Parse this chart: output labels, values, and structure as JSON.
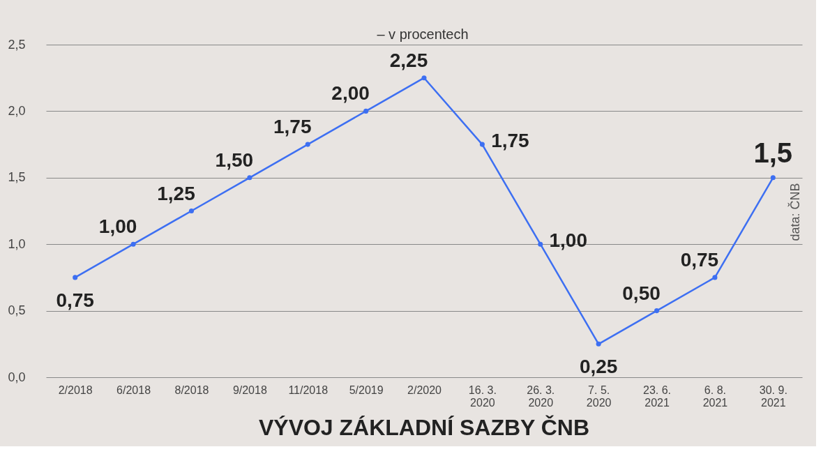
{
  "chart_data": {
    "type": "line",
    "title": "VÝVOJ ZÁKLADNÍ SAZBY ČNB",
    "subtitle": "– v procentech",
    "annotations": [
      "data: ČNB"
    ],
    "categories": [
      "2/2018",
      "6/2018",
      "8/2018",
      "9/2018",
      "11/2018",
      "5/2019",
      "2/2020",
      "16. 3.\n2020",
      "26. 3.\n2020",
      "7. 5.\n2020",
      "23. 6.\n2021",
      "6. 8.\n2021",
      "30. 9.\n2021"
    ],
    "series": [
      {
        "color": "#3d6ff2",
        "values": [
          0.75,
          1.0,
          1.25,
          1.5,
          1.75,
          2.0,
          2.25,
          1.75,
          1.0,
          0.25,
          0.5,
          0.75,
          1.5
        ],
        "value_labels": [
          "0,75",
          "1,00",
          "1,25",
          "1,50",
          "1,75",
          "2,00",
          "2,25",
          "1,75",
          "1,00",
          "0,25",
          "0,50",
          "0,75",
          "1,5"
        ]
      }
    ],
    "ylim": [
      0,
      2.5
    ],
    "yticks": [
      {
        "value": 0,
        "label": "0,0"
      },
      {
        "value": 0.5,
        "label": "0,5"
      },
      {
        "value": 1,
        "label": "1,0"
      },
      {
        "value": 1.5,
        "label": "1,5"
      },
      {
        "value": 2,
        "label": "2,0"
      },
      {
        "value": 2.5,
        "label": "2,5"
      }
    ],
    "grid": "y",
    "marker": "circle",
    "line_style": "solid"
  }
}
